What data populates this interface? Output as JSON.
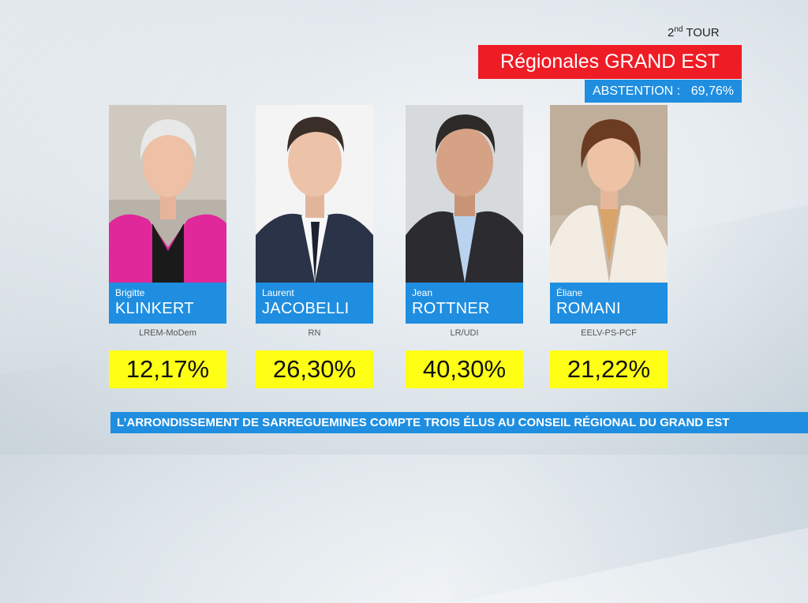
{
  "header": {
    "tour_number": "2",
    "tour_sup": "nd",
    "tour_label": " TOUR",
    "title": "Régionales GRAND EST",
    "abstention_label": "ABSTENTION :",
    "abstention_value": "69,76%"
  },
  "candidates": [
    {
      "first": "Brigitte",
      "last": "KLINKERT",
      "party": "LREM-MoDem",
      "pct": "12,17%"
    },
    {
      "first": "Laurent",
      "last": "JACOBELLI",
      "party": "RN",
      "pct": "26,30%"
    },
    {
      "first": "Jean",
      "last": "ROTTNER",
      "party": "LR/UDI",
      "pct": "40,30%"
    },
    {
      "first": "Éliane",
      "last": "ROMANI",
      "party": "EELV-PS-PCF",
      "pct": "21,22%"
    }
  ],
  "banner": {
    "text": "L’ARRONDISSEMENT DE SARREGUEMINES COMPTE TROIS ÉLUS AU CONSEIL RÉGIONAL DU GRAND EST"
  },
  "colors": {
    "title_red": "#ee1c25",
    "accent_blue": "#1f8ee0",
    "score_yellow": "#ffff16"
  }
}
